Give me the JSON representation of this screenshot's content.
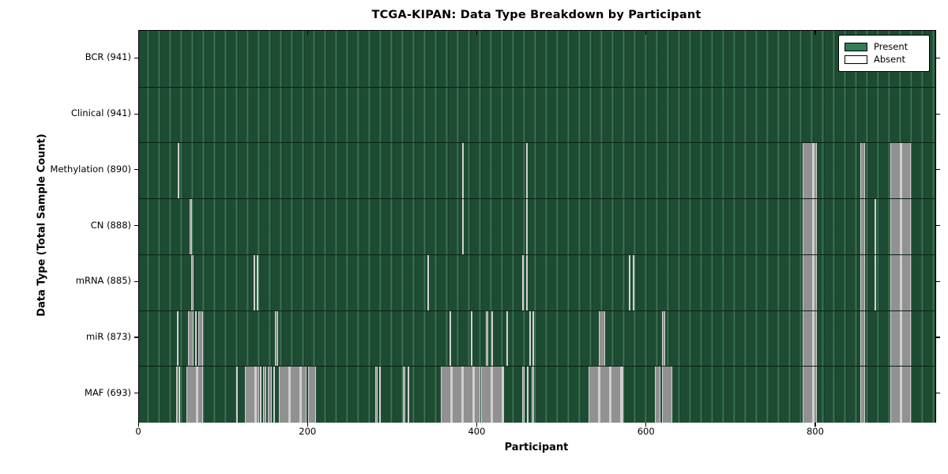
{
  "title": "TCGA-KIPAN: Data Type Breakdown by Participant",
  "x_axis": {
    "label": "Participant",
    "ticks": [
      0,
      200,
      400,
      600,
      800
    ]
  },
  "y_axis": {
    "label": "Data Type (Total Sample Count)"
  },
  "legend": {
    "items": [
      {
        "label": "Present",
        "color": "#2e7d53"
      },
      {
        "label": "Absent",
        "color": "#ffffff"
      }
    ]
  },
  "colors": {
    "present_fill": "#2e7d53",
    "absent_fill": "#ffffff",
    "plot_green": "#1e4c33",
    "stripe_gray": "#949494",
    "edge_light": "#cfcfcf",
    "border": "#000000"
  },
  "chart_data": {
    "type": "heatmap",
    "title": "TCGA-KIPAN: Data Type Breakdown by Participant",
    "xlabel": "Participant",
    "ylabel": "Data Type (Total Sample Count)",
    "n_participants": 941,
    "xlim": [
      0,
      941
    ],
    "x_ticks": [
      0,
      200,
      400,
      600,
      800
    ],
    "legend_position": "upper right",
    "rows": [
      {
        "label": "BCR (941)",
        "data_type": "BCR",
        "present_count": 941,
        "absent_ranges": []
      },
      {
        "label": "Clinical (941)",
        "data_type": "Clinical",
        "present_count": 941,
        "absent_ranges": []
      },
      {
        "label": "Methylation (890)",
        "data_type": "Methylation",
        "present_count": 890,
        "absent_ranges": [
          [
            46,
            48
          ],
          [
            382,
            384
          ],
          [
            457,
            459
          ],
          [
            784,
            801
          ],
          [
            852,
            858
          ],
          [
            888,
            912
          ]
        ]
      },
      {
        "label": "CN (888)",
        "data_type": "CN",
        "present_count": 888,
        "absent_ranges": [
          [
            60,
            63
          ],
          [
            382,
            384
          ],
          [
            457,
            459
          ],
          [
            784,
            801
          ],
          [
            852,
            858
          ],
          [
            869,
            871
          ],
          [
            888,
            912
          ]
        ]
      },
      {
        "label": "mRNA (885)",
        "data_type": "mRNA",
        "present_count": 885,
        "absent_ranges": [
          [
            62,
            64
          ],
          [
            135,
            137
          ],
          [
            139,
            141
          ],
          [
            341,
            343
          ],
          [
            453,
            455
          ],
          [
            457,
            459
          ],
          [
            579,
            581
          ],
          [
            583,
            585
          ],
          [
            784,
            801
          ],
          [
            852,
            858
          ],
          [
            869,
            871
          ],
          [
            888,
            912
          ]
        ]
      },
      {
        "label": "miR (873)",
        "data_type": "miR",
        "present_count": 873,
        "absent_ranges": [
          [
            45,
            47
          ],
          [
            58,
            64
          ],
          [
            66,
            68
          ],
          [
            70,
            76
          ],
          [
            161,
            164
          ],
          [
            367,
            369
          ],
          [
            392,
            394
          ],
          [
            410,
            413
          ],
          [
            416,
            418
          ],
          [
            434,
            436
          ],
          [
            461,
            463
          ],
          [
            465,
            467
          ],
          [
            543,
            551
          ],
          [
            618,
            622
          ],
          [
            784,
            801
          ],
          [
            852,
            858
          ],
          [
            888,
            912
          ]
        ]
      },
      {
        "label": "MAF (693)",
        "data_type": "MAF",
        "present_count": 693,
        "absent_ranges": [
          [
            44,
            46
          ],
          [
            47,
            49
          ],
          [
            56,
            76
          ],
          [
            115,
            117
          ],
          [
            125,
            142
          ],
          [
            143,
            145
          ],
          [
            147,
            150
          ],
          [
            152,
            157
          ],
          [
            159,
            161
          ],
          [
            165,
            198
          ],
          [
            200,
            209
          ],
          [
            279,
            282
          ],
          [
            284,
            286
          ],
          [
            312,
            315
          ],
          [
            317,
            319
          ],
          [
            357,
            403
          ],
          [
            404,
            431
          ],
          [
            453,
            456
          ],
          [
            458,
            460
          ],
          [
            464,
            467
          ],
          [
            531,
            572
          ],
          [
            610,
            616
          ],
          [
            618,
            630
          ],
          [
            784,
            801
          ],
          [
            852,
            858
          ],
          [
            888,
            912
          ]
        ]
      }
    ]
  }
}
